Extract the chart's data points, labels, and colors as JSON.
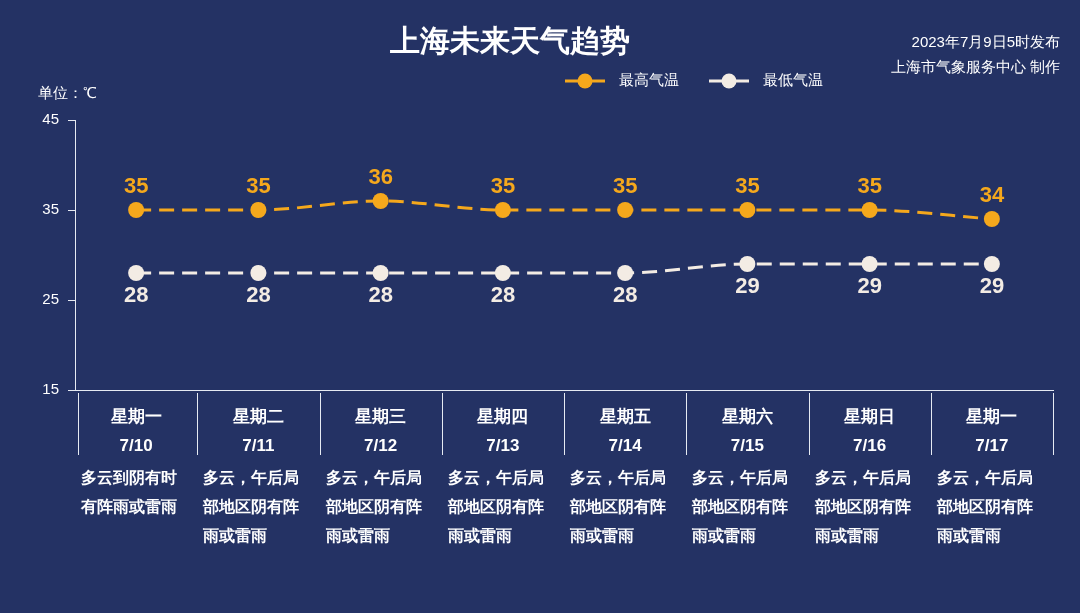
{
  "chart_data": {
    "type": "line",
    "title": "上海未来天气趋势",
    "ylabel": "单位：℃",
    "categories": [
      "星期一 7/10",
      "星期二 7/11",
      "星期三 7/12",
      "星期四 7/13",
      "星期五 7/14",
      "星期六 7/15",
      "星期日 7/16",
      "星期一 7/17"
    ],
    "series": [
      {
        "name": "最高气温",
        "color": "#f5a81c",
        "values": [
          35,
          35,
          36,
          35,
          35,
          35,
          35,
          34
        ]
      },
      {
        "name": "最低气温",
        "color": "#f3ece4",
        "values": [
          28,
          28,
          28,
          28,
          28,
          29,
          29,
          29
        ]
      }
    ],
    "ylim": [
      15,
      45
    ],
    "yticks": [
      15,
      25,
      35,
      45
    ],
    "grid": false,
    "legend": "top",
    "marker": "circle",
    "line_style": "dashed",
    "data_labels": true,
    "annotations": [
      "2023年7月9日5时发布",
      "上海市气象服务中心 制作",
      "多云到阴有时有阵雨或雷雨",
      "多云，午后局部地区阴有阵雨或雷雨",
      "多云，午后局部地区阴有阵雨或雷雨",
      "多云，午后局部地区阴有阵雨或雷雨",
      "多云，午后局部地区阴有阵雨或雷雨",
      "多云，午后局部地区阴有阵雨或雷雨",
      "多云，午后局部地区阴有阵雨或雷雨",
      "多云，午后局部地区阴有阵雨或雷雨"
    ]
  }
}
